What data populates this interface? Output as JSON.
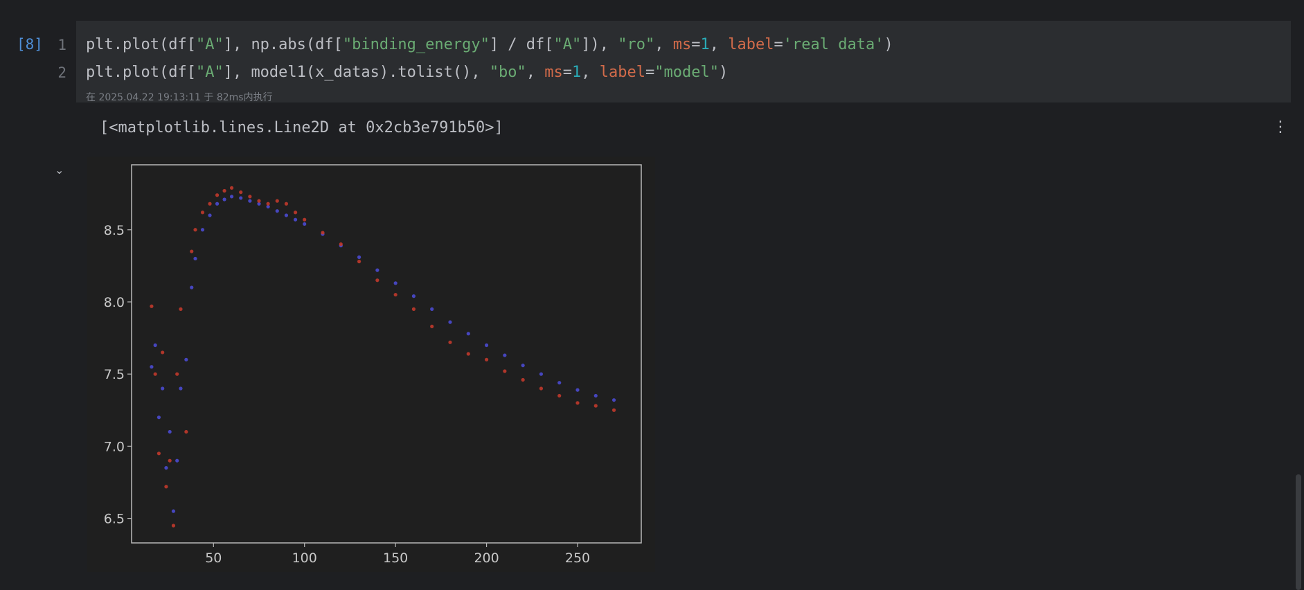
{
  "cell": {
    "execution_count": "[8]",
    "lines": [
      {
        "num": "1"
      },
      {
        "num": "2"
      }
    ],
    "exec_info": "在 2025.04.22 19:13:11 于 82ms内执行"
  },
  "output": {
    "text": "[<matplotlib.lines.Line2D at 0x2cb3e791b50>]"
  },
  "colors": {
    "string": "#6aab73",
    "keyword_arg": "#d26b4a",
    "number": "#2aacb8",
    "real_data": "#c0392b",
    "model": "#4a4ad0"
  },
  "chart_data": {
    "type": "scatter",
    "title": "",
    "xlabel": "",
    "ylabel": "",
    "xlim": [
      5,
      285
    ],
    "ylim": [
      6.33,
      8.95
    ],
    "xticks": [
      50,
      100,
      150,
      200,
      250
    ],
    "yticks": [
      6.5,
      7.0,
      7.5,
      8.0,
      8.5
    ],
    "series": [
      {
        "name": "real data",
        "color": "#c0392b",
        "x": [
          16,
          18,
          20,
          22,
          24,
          26,
          28,
          30,
          32,
          35,
          38,
          40,
          44,
          48,
          52,
          56,
          60,
          65,
          70,
          75,
          80,
          85,
          90,
          95,
          100,
          110,
          120,
          130,
          140,
          150,
          160,
          170,
          180,
          190,
          200,
          210,
          220,
          230,
          240,
          250,
          260,
          270
        ],
        "y": [
          7.97,
          7.5,
          6.95,
          7.65,
          6.72,
          6.9,
          6.45,
          7.5,
          7.95,
          7.1,
          8.35,
          8.5,
          8.62,
          8.68,
          8.74,
          8.77,
          8.79,
          8.76,
          8.73,
          8.7,
          8.68,
          8.7,
          8.68,
          8.62,
          8.57,
          8.48,
          8.4,
          8.28,
          8.15,
          8.05,
          7.95,
          7.83,
          7.72,
          7.64,
          7.6,
          7.52,
          7.46,
          7.4,
          7.35,
          7.3,
          7.28,
          7.25
        ]
      },
      {
        "name": "model",
        "color": "#4a4ad0",
        "x": [
          16,
          18,
          20,
          22,
          24,
          26,
          28,
          30,
          32,
          35,
          38,
          40,
          44,
          48,
          52,
          56,
          60,
          65,
          70,
          75,
          80,
          85,
          90,
          95,
          100,
          110,
          120,
          130,
          140,
          150,
          160,
          170,
          180,
          190,
          200,
          210,
          220,
          230,
          240,
          250,
          260,
          270
        ],
        "y": [
          7.55,
          7.7,
          7.2,
          7.4,
          6.85,
          7.1,
          6.55,
          6.9,
          7.4,
          7.6,
          8.1,
          8.3,
          8.5,
          8.6,
          8.68,
          8.71,
          8.73,
          8.72,
          8.7,
          8.68,
          8.66,
          8.63,
          8.6,
          8.57,
          8.54,
          8.47,
          8.39,
          8.31,
          8.22,
          8.13,
          8.04,
          7.95,
          7.86,
          7.78,
          7.7,
          7.63,
          7.56,
          7.5,
          7.44,
          7.39,
          7.35,
          7.32
        ]
      }
    ]
  }
}
